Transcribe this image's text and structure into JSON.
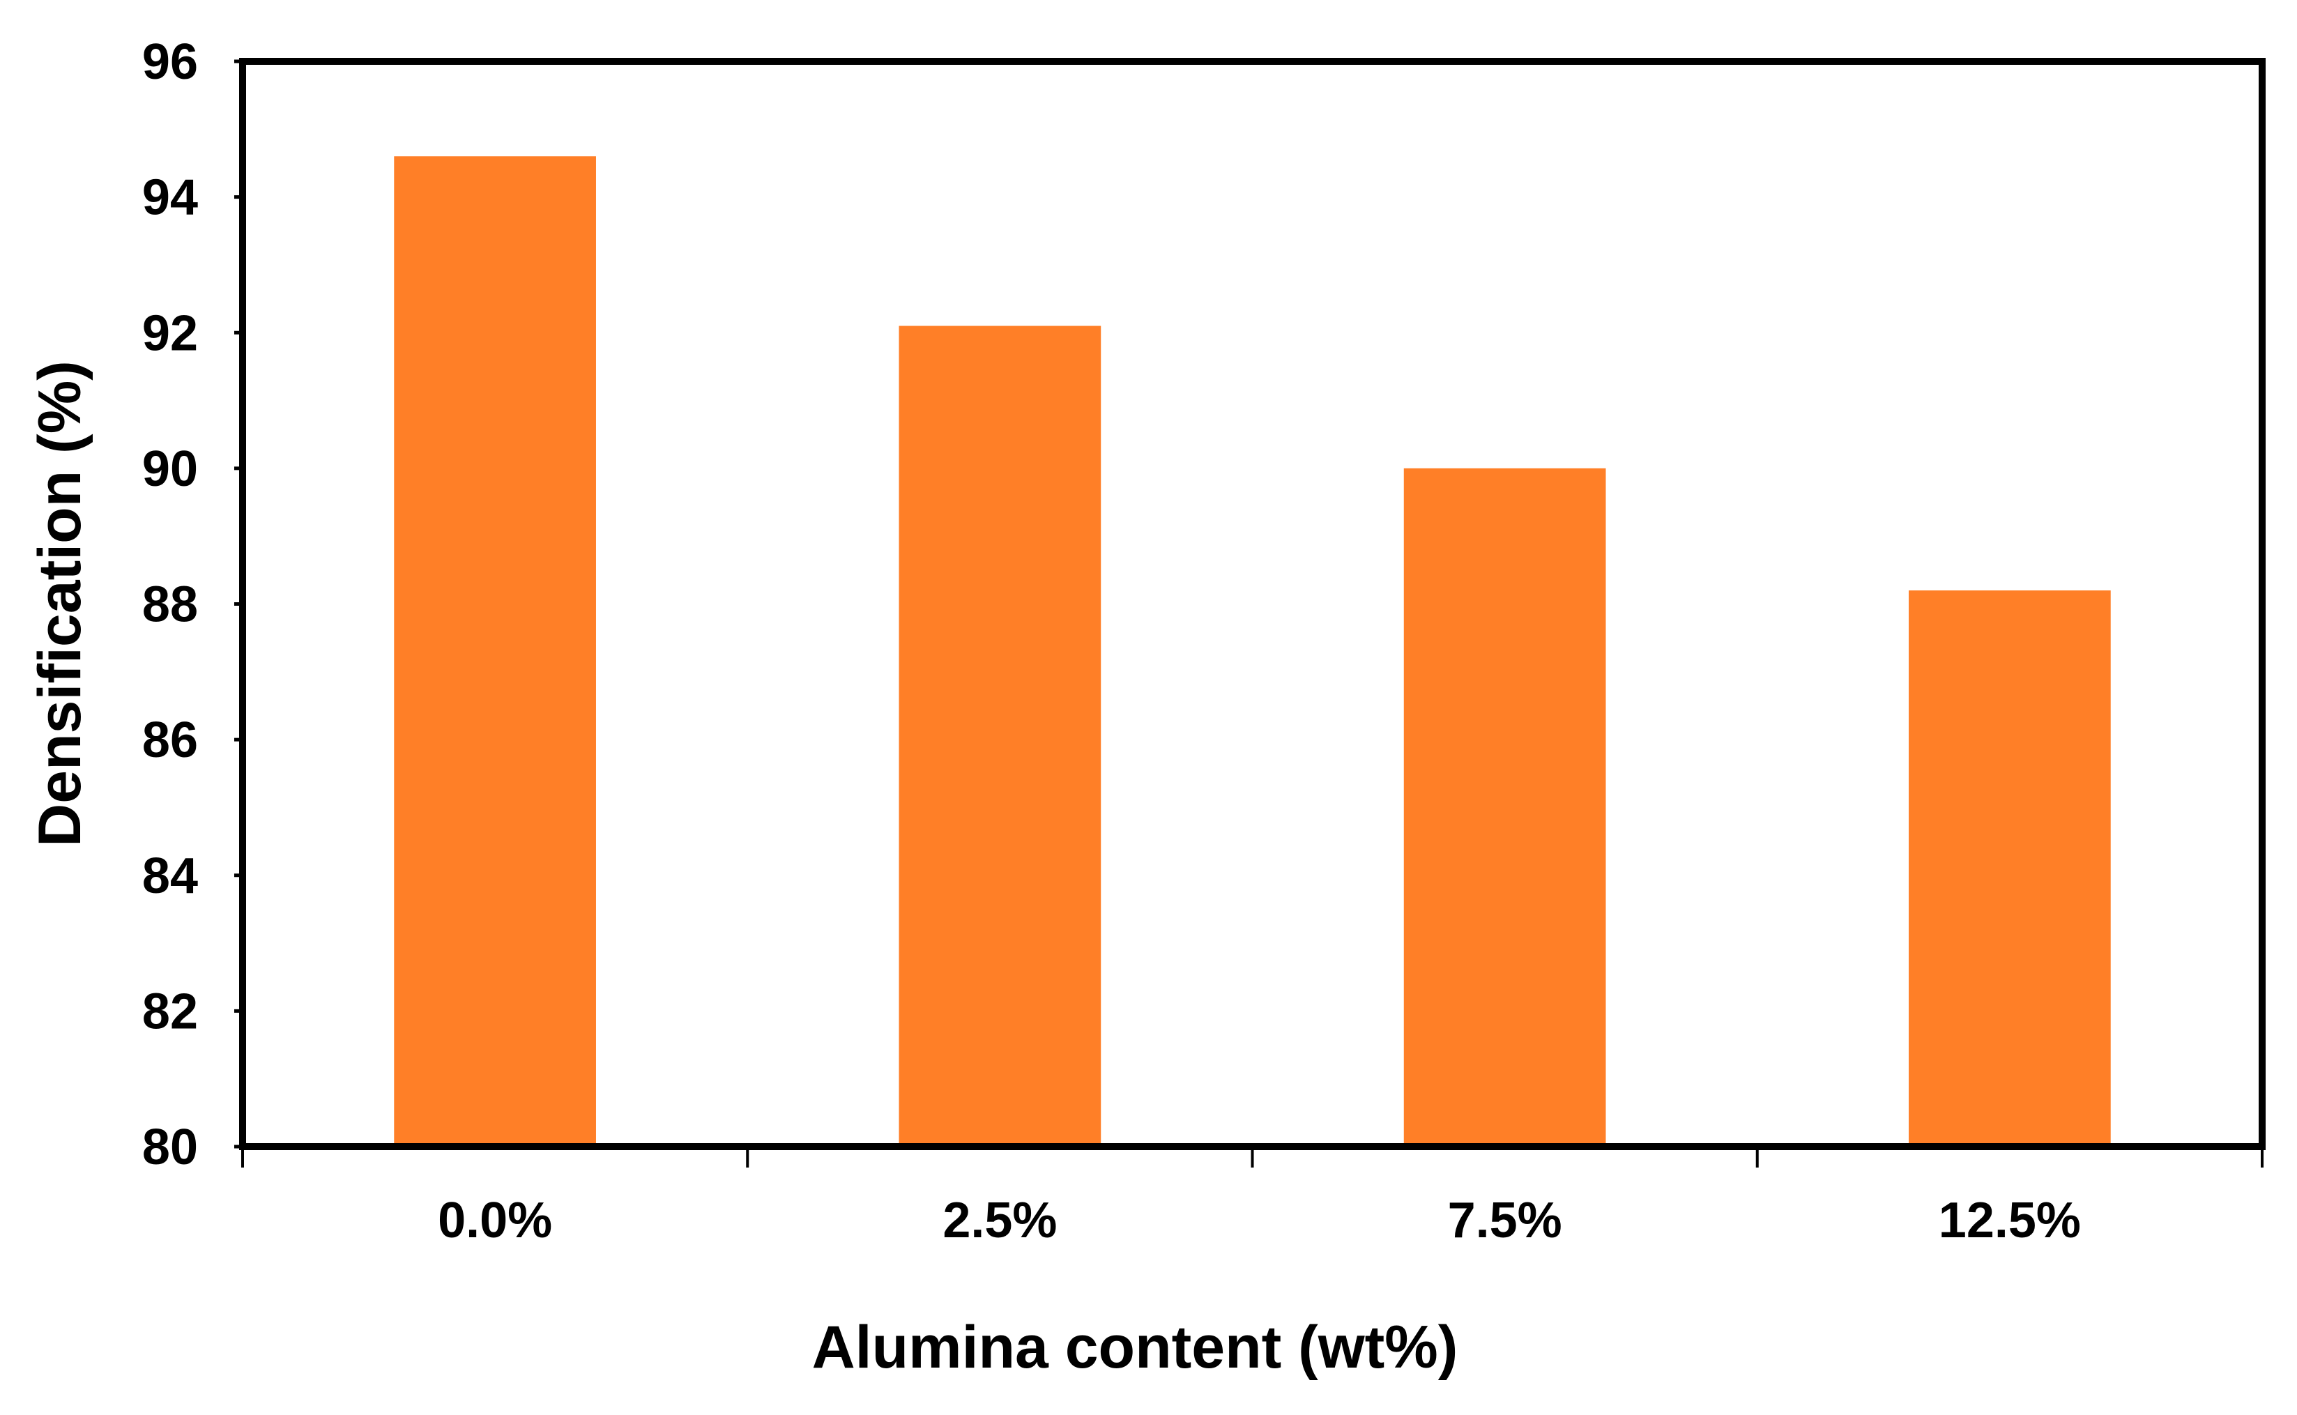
{
  "chart_data": {
    "type": "bar",
    "categories": [
      "0.0%",
      "2.5%",
      "7.5%",
      "12.5%"
    ],
    "values": [
      94.6,
      92.1,
      90.0,
      88.2
    ],
    "xlabel": "Alumina content (wt%)",
    "ylabel": "Densification (%)",
    "ylim": [
      80,
      96
    ],
    "yticks": [
      "80",
      "82",
      "84",
      "86",
      "88",
      "90",
      "92",
      "94",
      "96"
    ],
    "bar_color": "#FF7F27",
    "grid": false,
    "legend": "none"
  }
}
